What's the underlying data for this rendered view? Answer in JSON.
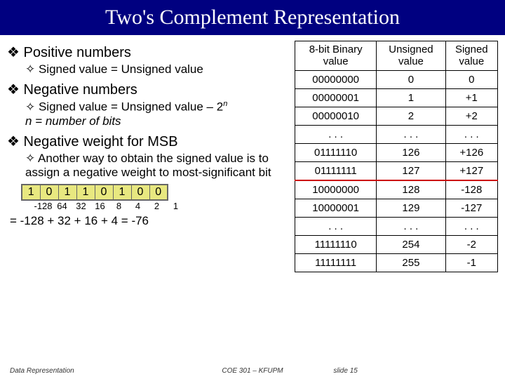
{
  "title": "Two's Complement Representation",
  "left": {
    "b1a": "Positive numbers",
    "b2a": "Signed value = Unsigned value",
    "b1b": "Negative numbers",
    "b2b_pre": "Signed value = Unsigned value – 2",
    "b2b_sup": "n",
    "b2b_line2": "n = number of bits",
    "b1c": "Negative weight for MSB",
    "b2c": "Another way to obtain the signed value is to assign a negative weight to most-significant bit",
    "bits": [
      "1",
      "0",
      "1",
      "1",
      "0",
      "1",
      "0",
      "0"
    ],
    "weights": [
      "-128",
      "64",
      "32",
      "16",
      "8",
      "4",
      "2",
      "1"
    ],
    "equation": "= -128 + 32 + 16 + 4 = -76"
  },
  "table": {
    "headers": [
      "8-bit Binary value",
      "Unsigned value",
      "Signed value"
    ],
    "rows": [
      {
        "b": "00000000",
        "u": "0",
        "s": "0",
        "rl": false
      },
      {
        "b": "00000001",
        "u": "1",
        "s": "+1",
        "rl": false
      },
      {
        "b": "00000010",
        "u": "2",
        "s": "+2",
        "rl": false
      },
      {
        "b": ". . .",
        "u": ". . .",
        "s": ". . .",
        "rl": false
      },
      {
        "b": "01111110",
        "u": "126",
        "s": "+126",
        "rl": false
      },
      {
        "b": "01111111",
        "u": "127",
        "s": "+127",
        "rl": true
      },
      {
        "b": "10000000",
        "u": "128",
        "s": "-128",
        "rl": false
      },
      {
        "b": "10000001",
        "u": "129",
        "s": "-127",
        "rl": false
      },
      {
        "b": ". . .",
        "u": ". . .",
        "s": ". . .",
        "rl": false
      },
      {
        "b": "11111110",
        "u": "254",
        "s": "-2",
        "rl": false
      },
      {
        "b": "11111111",
        "u": "255",
        "s": "-1",
        "rl": false
      }
    ]
  },
  "footer": {
    "left": "Data Representation",
    "center": "COE 301 – KFUPM",
    "right": "slide 15"
  },
  "colors": {
    "title_bg": "#000080",
    "bit_bg": "#e8e880",
    "redline": "#cc0000"
  }
}
